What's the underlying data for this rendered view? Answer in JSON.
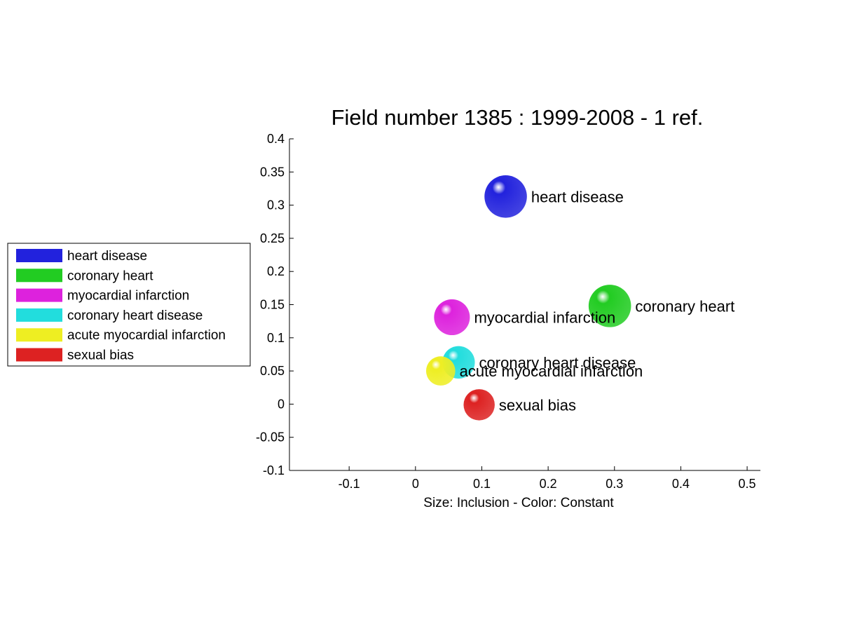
{
  "chart_data": {
    "type": "scatter",
    "title": "Field number 1385 : 1999-2008  - 1 ref.",
    "xlabel": "Size: Inclusion - Color: Constant",
    "ylabel": "",
    "xlim": [
      -0.19,
      0.52
    ],
    "ylim": [
      -0.1,
      0.4
    ],
    "xticks": [
      -0.1,
      0,
      0.1,
      0.2,
      0.3,
      0.4,
      0.5
    ],
    "xtick_labels": [
      "-0.1",
      "0",
      "0.1",
      "0.2",
      "0.3",
      "0.4",
      "0.5"
    ],
    "yticks": [
      -0.1,
      -0.05,
      0,
      0.05,
      0.1,
      0.15,
      0.2,
      0.25,
      0.3,
      0.35,
      0.4
    ],
    "ytick_labels": [
      "-0.1",
      "-0.05",
      "0",
      "0.05",
      "0.1",
      "0.15",
      "0.2",
      "0.25",
      "0.3",
      "0.35",
      "0.4"
    ],
    "grid": false,
    "legend_position": "outside-left",
    "series": [
      {
        "name": "heart disease",
        "x": 0.136,
        "y": 0.313,
        "size": 0.064,
        "color": "#2222dd"
      },
      {
        "name": "coronary heart",
        "x": 0.293,
        "y": 0.148,
        "size": 0.064,
        "color": "#22cc22"
      },
      {
        "name": "myocardial infarction",
        "x": 0.055,
        "y": 0.131,
        "size": 0.054,
        "color": "#dd22dd"
      },
      {
        "name": "coronary heart disease",
        "x": 0.065,
        "y": 0.063,
        "size": 0.049,
        "color": "#22dddd"
      },
      {
        "name": "acute myocardial infarction",
        "x": 0.038,
        "y": 0.05,
        "size": 0.044,
        "color": "#eeee22"
      },
      {
        "name": "sexual bias",
        "x": 0.096,
        "y": -0.001,
        "size": 0.047,
        "color": "#dd2222"
      }
    ]
  }
}
